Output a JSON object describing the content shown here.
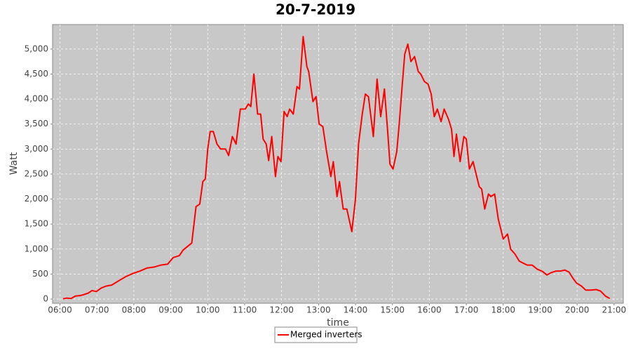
{
  "chart_data": {
    "type": "line",
    "title": "20-7-2019",
    "x_label": "time",
    "y_label": "Watt",
    "x": [
      "06:05",
      "06:11",
      "06:18",
      "06:25",
      "06:33",
      "06:39",
      "06:46",
      "06:52",
      "06:59",
      "07:07",
      "07:15",
      "07:24",
      "07:36",
      "07:47",
      "07:58",
      "08:10",
      "08:21",
      "08:33",
      "08:44",
      "08:55",
      "09:04",
      "09:14",
      "09:20",
      "09:27",
      "09:34",
      "09:41",
      "09:47",
      "09:52",
      "09:56",
      "10:00",
      "10:04",
      "10:09",
      "10:15",
      "10:21",
      "10:29",
      "10:34",
      "10:40",
      "10:46",
      "10:53",
      "11:01",
      "11:06",
      "11:10",
      "11:15",
      "11:21",
      "11:26",
      "11:30",
      "11:35",
      "11:39",
      "11:44",
      "11:50",
      "11:54",
      "11:59",
      "12:04",
      "12:09",
      "12:13",
      "12:19",
      "12:25",
      "12:29",
      "12:35",
      "12:41",
      "12:44",
      "12:51",
      "12:56",
      "13:01",
      "13:07",
      "13:13",
      "13:20",
      "13:24",
      "13:30",
      "13:34",
      "13:40",
      "13:46",
      "13:54",
      "14:00",
      "14:05",
      "14:11",
      "14:16",
      "14:21",
      "14:29",
      "14:35",
      "14:41",
      "14:47",
      "14:52",
      "14:56",
      "15:01",
      "15:07",
      "15:11",
      "15:16",
      "15:20",
      "15:25",
      "15:30",
      "15:36",
      "15:42",
      "15:46",
      "15:52",
      "15:58",
      "16:03",
      "16:08",
      "16:13",
      "16:19",
      "16:24",
      "16:31",
      "16:36",
      "16:40",
      "16:44",
      "16:50",
      "16:56",
      "17:00",
      "17:05",
      "17:11",
      "17:16",
      "17:21",
      "17:25",
      "17:30",
      "17:36",
      "17:40",
      "17:46",
      "17:52",
      "18:00",
      "18:07",
      "18:12",
      "18:19",
      "18:26",
      "18:32",
      "18:39",
      "18:47",
      "18:55",
      "19:04",
      "19:11",
      "19:18",
      "19:26",
      "19:33",
      "19:40",
      "19:47",
      "19:53",
      "19:59",
      "20:07",
      "20:14",
      "20:22",
      "20:31",
      "20:38",
      "20:46",
      "20:53"
    ],
    "series": [
      {
        "name": "Merged inverters",
        "color": "#ff0000",
        "values": [
          5,
          20,
          10,
          60,
          70,
          90,
          120,
          170,
          150,
          220,
          260,
          280,
          370,
          450,
          510,
          560,
          620,
          640,
          680,
          700,
          830,
          870,
          980,
          1050,
          1120,
          1850,
          1900,
          2350,
          2400,
          3000,
          3350,
          3350,
          3100,
          3000,
          3000,
          2870,
          3250,
          3100,
          3800,
          3800,
          3900,
          3850,
          4500,
          3700,
          3700,
          3200,
          3100,
          2770,
          3250,
          2450,
          2850,
          2750,
          3750,
          3650,
          3800,
          3700,
          4250,
          4200,
          5250,
          4650,
          4550,
          3950,
          4050,
          3500,
          3450,
          2950,
          2450,
          2750,
          2050,
          2350,
          1800,
          1800,
          1350,
          2000,
          3100,
          3700,
          4100,
          4050,
          3250,
          4400,
          3650,
          4200,
          3400,
          2700,
          2600,
          2950,
          3500,
          4300,
          4900,
          5100,
          4750,
          4850,
          4550,
          4500,
          4350,
          4300,
          4100,
          3650,
          3800,
          3550,
          3800,
          3600,
          3400,
          2850,
          3300,
          2750,
          3250,
          3200,
          2600,
          2750,
          2500,
          2250,
          2200,
          1800,
          2100,
          2050,
          2100,
          1600,
          1200,
          1300,
          1000,
          900,
          760,
          720,
          680,
          680,
          600,
          550,
          480,
          530,
          560,
          560,
          580,
          540,
          420,
          320,
          260,
          180,
          180,
          190,
          160,
          60,
          10
        ]
      }
    ],
    "xlim": [
      "05:48",
      "21:15"
    ],
    "xticks": [
      "06:00",
      "07:00",
      "08:00",
      "09:00",
      "10:00",
      "11:00",
      "12:00",
      "13:00",
      "14:00",
      "15:00",
      "16:00",
      "17:00",
      "18:00",
      "19:00",
      "20:00",
      "21:00"
    ],
    "ylim": [
      -84,
      5490
    ],
    "yticks": [
      0,
      500,
      {
        "value": 1000,
        "label": "1,000"
      },
      {
        "value": 1500,
        "label": "1,500"
      },
      {
        "value": 2000,
        "label": "2,000"
      },
      {
        "value": 2500,
        "label": "2,500"
      },
      {
        "value": 3000,
        "label": "3,000"
      },
      {
        "value": 3500,
        "label": "3,500"
      },
      {
        "value": 4000,
        "label": "4,000"
      },
      {
        "value": 4500,
        "label": "4,500"
      },
      {
        "value": 5000,
        "label": "5,000"
      }
    ],
    "grid": true,
    "legend": "bottom"
  }
}
